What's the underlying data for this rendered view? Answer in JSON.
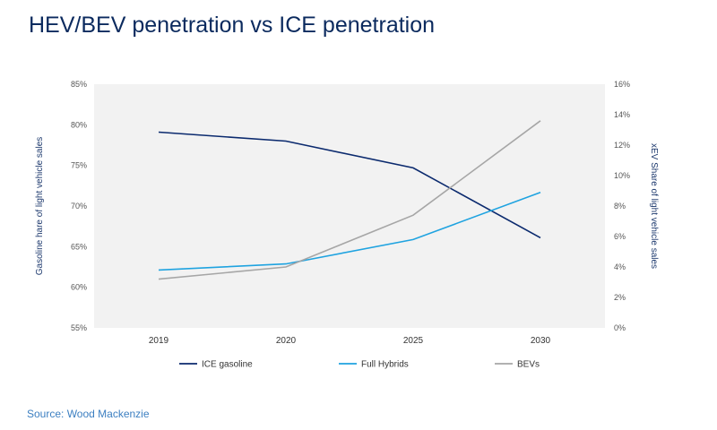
{
  "title": "HEV/BEV penetration vs ICE penetration",
  "source": "Source: Wood Mackenzie",
  "chart_data": {
    "type": "line",
    "categories": [
      "2019",
      "2020",
      "2025",
      "2030"
    ],
    "left_axis": {
      "label": "Gasoline hare of light vehicle sales",
      "range": [
        55,
        85
      ],
      "ticks": [
        "55%",
        "60%",
        "65%",
        "70%",
        "75%",
        "80%",
        "85%"
      ],
      "tick_values": [
        55,
        60,
        65,
        70,
        75,
        80,
        85
      ]
    },
    "right_axis": {
      "label": "xEV Share of light vehicle  sales",
      "range": [
        0,
        16
      ],
      "ticks": [
        "0%",
        "2%",
        "4%",
        "6%",
        "8%",
        "10%",
        "12%",
        "14%",
        "16%"
      ],
      "tick_values": [
        0,
        2,
        4,
        6,
        8,
        10,
        12,
        14,
        16
      ]
    },
    "series": [
      {
        "name": "ICE gasoline",
        "axis": "left",
        "color": "#0b2a6e",
        "values": [
          79.1,
          78.0,
          74.7,
          66.1
        ]
      },
      {
        "name": "Full Hybrids",
        "axis": "right",
        "color": "#1fa3e0",
        "values": [
          3.8,
          4.2,
          5.8,
          8.9
        ]
      },
      {
        "name": "BEVs",
        "axis": "right",
        "color": "#a6a6a6",
        "values": [
          3.2,
          4.0,
          7.4,
          13.6
        ]
      }
    ],
    "grid": false,
    "plot_background": "#f2f2f2",
    "legend": "bottom"
  }
}
